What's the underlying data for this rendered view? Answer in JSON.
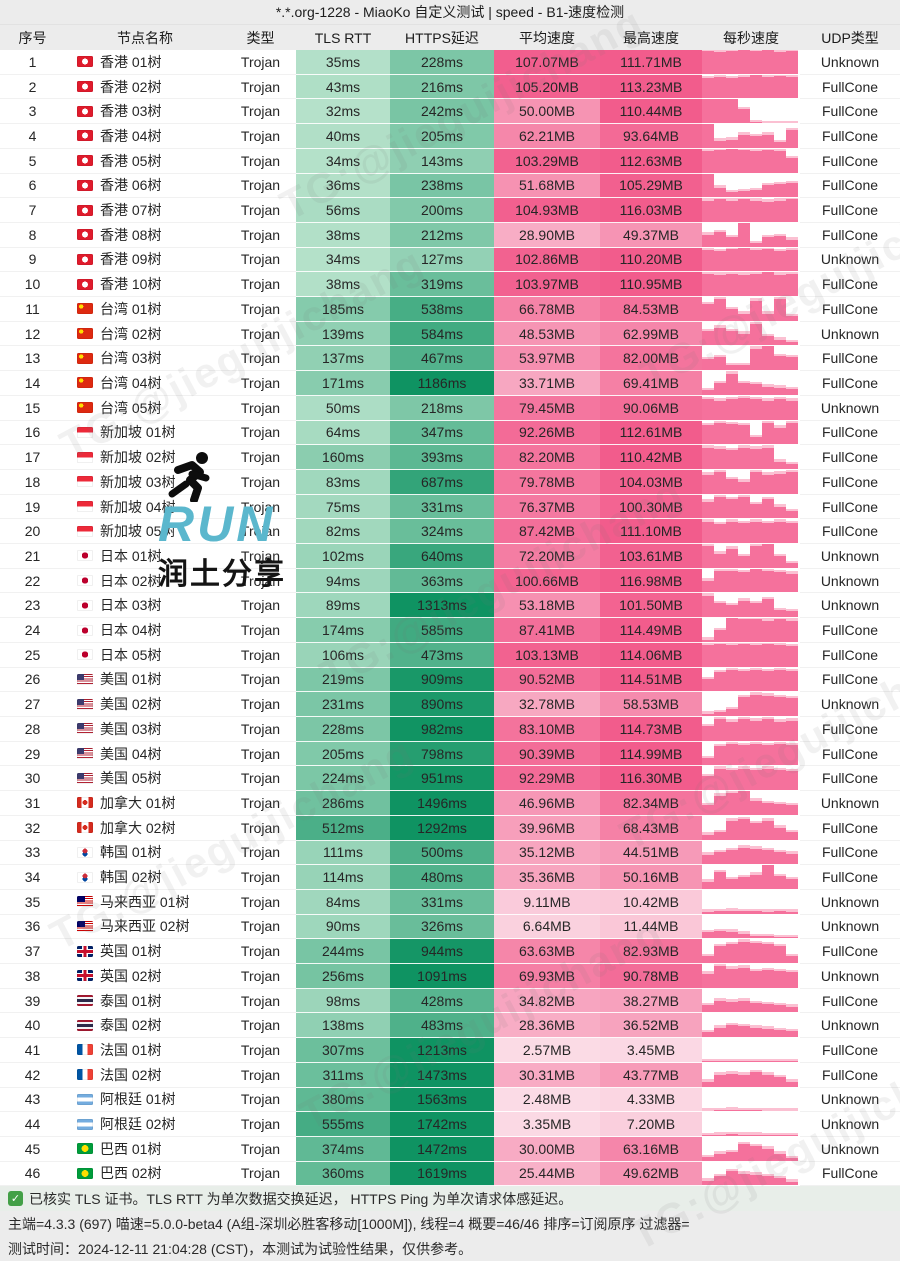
{
  "header": {
    "title": "*.*.org-1228 - MiaoKo 自定义测试 | speed - B1-速度检测"
  },
  "columns": [
    "序号",
    "节点名称",
    "类型",
    "TLS RTT",
    "HTTPS延迟",
    "平均速度",
    "最高速度",
    "每秒速度",
    "UDP类型"
  ],
  "colors": {
    "green_light": "#d2efdc",
    "green_dark": "#0f9362",
    "pink_pale": "#fce7ee",
    "pink_strong": "#f25c8c",
    "bar_pink": "#f5719c",
    "bar_pink_light": "#fbc0d2",
    "header_bg": "#ececec",
    "check_green": "#43a047",
    "run_teal": "#5bb7cd"
  },
  "watermark": {
    "tg": "TG:@jieguijichang",
    "run": "RUN",
    "share": "润土分享",
    "runner_icon": "running-person-icon"
  },
  "footer": {
    "line1": "已核实 TLS 证书。TLS RTT 为单次数据交换延迟， HTTPS Ping 为单次请求体感延迟。",
    "line2": "主端=4.3.3 (697) 喵速=5.0.0-beta4 (A组-深圳必胜客移动[1000M]), 线程=4 概要=46/46 排序=订阅原序 过滤器=",
    "line3": "测试时间：2024-12-11 21:04:28 (CST)，本测试为试验性结果，仅供参考。"
  },
  "rows": [
    {
      "no": "1",
      "flag": "hk",
      "name": "香港 01树",
      "type": "Trojan",
      "tls": "35ms",
      "https": "228ms",
      "avg": "107.07MB",
      "max": "111.71MB",
      "udp": "Unknown",
      "bars": [
        0.95,
        0.9,
        0.97,
        1,
        0.95,
        1,
        0.9,
        0.95
      ]
    },
    {
      "no": "2",
      "flag": "hk",
      "name": "香港 02树",
      "type": "Trojan",
      "tls": "43ms",
      "https": "216ms",
      "avg": "105.20MB",
      "max": "113.23MB",
      "udp": "FullCone",
      "bars": [
        0.85,
        0.92,
        0.85,
        0.9,
        0.97,
        0.9,
        0.95,
        0.9
      ]
    },
    {
      "no": "3",
      "flag": "hk",
      "name": "香港 03树",
      "type": "Trojan",
      "tls": "32ms",
      "https": "242ms",
      "avg": "50.00MB",
      "max": "110.44MB",
      "udp": "FullCone",
      "bars": [
        1,
        1,
        1,
        0.6,
        0.05,
        0,
        0,
        0
      ]
    },
    {
      "no": "4",
      "flag": "hk",
      "name": "香港 04树",
      "type": "Trojan",
      "tls": "40ms",
      "https": "205ms",
      "avg": "62.21MB",
      "max": "93.64MB",
      "udp": "FullCone",
      "bars": [
        1,
        0.3,
        0.35,
        0.55,
        0.5,
        0.55,
        0.25,
        0.75
      ]
    },
    {
      "no": "5",
      "flag": "hk",
      "name": "香港 05树",
      "type": "Trojan",
      "tls": "34ms",
      "https": "143ms",
      "avg": "103.29MB",
      "max": "112.63MB",
      "udp": "FullCone",
      "bars": [
        0.9,
        0.95,
        1,
        0.95,
        0.9,
        0.95,
        0.9,
        0.6
      ]
    },
    {
      "no": "6",
      "flag": "hk",
      "name": "香港 06树",
      "type": "Trojan",
      "tls": "36ms",
      "https": "238ms",
      "avg": "51.68MB",
      "max": "105.29MB",
      "udp": "FullCone",
      "bars": [
        1,
        0.4,
        0.2,
        0.25,
        0.3,
        0.5,
        0.55,
        0.6
      ]
    },
    {
      "no": "7",
      "flag": "hk",
      "name": "香港 07树",
      "type": "Trojan",
      "tls": "56ms",
      "https": "200ms",
      "avg": "104.93MB",
      "max": "116.03MB",
      "udp": "FullCone",
      "bars": [
        0.9,
        0.95,
        0.9,
        0.95,
        0.9,
        0.85,
        0.9,
        0.95
      ]
    },
    {
      "no": "8",
      "flag": "hk",
      "name": "香港 08树",
      "type": "Trojan",
      "tls": "38ms",
      "https": "212ms",
      "avg": "28.90MB",
      "max": "49.37MB",
      "udp": "FullCone",
      "bars": [
        0.5,
        0.6,
        0.4,
        1,
        0.15,
        0.4,
        0.45,
        0.3
      ]
    },
    {
      "no": "9",
      "flag": "hk",
      "name": "香港 09树",
      "type": "Trojan",
      "tls": "34ms",
      "https": "127ms",
      "avg": "102.86MB",
      "max": "110.20MB",
      "udp": "Unknown",
      "bars": [
        0.9,
        0.85,
        0.95,
        1,
        0.9,
        0.95,
        0.85,
        0.9
      ]
    },
    {
      "no": "10",
      "flag": "hk",
      "name": "香港 10树",
      "type": "Trojan",
      "tls": "38ms",
      "https": "319ms",
      "avg": "103.97MB",
      "max": "110.95MB",
      "udp": "FullCone",
      "bars": [
        0.95,
        0.9,
        0.95,
        0.9,
        0.95,
        1,
        0.9,
        0.95
      ]
    },
    {
      "no": "11",
      "flag": "tw",
      "name": "台湾 01树",
      "type": "Trojan",
      "tls": "185ms",
      "https": "538ms",
      "avg": "66.78MB",
      "max": "84.53MB",
      "udp": "FullCone",
      "bars": [
        0.7,
        0.9,
        0.5,
        0.3,
        0.85,
        0.3,
        0.9,
        0.2
      ]
    },
    {
      "no": "12",
      "flag": "tw",
      "name": "台湾 02树",
      "type": "Trojan",
      "tls": "139ms",
      "https": "584ms",
      "avg": "48.53MB",
      "max": "62.99MB",
      "udp": "Unknown",
      "bars": [
        0.6,
        0.75,
        0.6,
        0.5,
        0.9,
        0.4,
        0.25,
        0.15
      ]
    },
    {
      "no": "13",
      "flag": "tw",
      "name": "台湾 03树",
      "type": "Trojan",
      "tls": "137ms",
      "https": "467ms",
      "avg": "53.97MB",
      "max": "82.00MB",
      "udp": "FullCone",
      "bars": [
        0.45,
        0.55,
        0.2,
        0.2,
        0.9,
        1,
        0.6,
        0.55
      ]
    },
    {
      "no": "14",
      "flag": "tw",
      "name": "台湾 04树",
      "type": "Trojan",
      "tls": "171ms",
      "https": "1186ms",
      "avg": "33.71MB",
      "max": "69.41MB",
      "udp": "FullCone",
      "bars": [
        0.2,
        0.5,
        0.9,
        0.5,
        0.45,
        0.35,
        0.3,
        0.25
      ]
    },
    {
      "no": "15",
      "flag": "tw",
      "name": "台湾 05树",
      "type": "Trojan",
      "tls": "50ms",
      "https": "218ms",
      "avg": "79.45MB",
      "max": "90.06MB",
      "udp": "Unknown",
      "bars": [
        0.85,
        0.8,
        0.85,
        0.9,
        0.85,
        0.8,
        0.85,
        0.8
      ]
    },
    {
      "no": "16",
      "flag": "sg",
      "name": "新加坡 01树",
      "type": "Trojan",
      "tls": "64ms",
      "https": "347ms",
      "avg": "92.26MB",
      "max": "112.61MB",
      "udp": "FullCone",
      "bars": [
        0.8,
        0.9,
        0.85,
        0.8,
        0.3,
        0.9,
        0.7,
        0.9
      ]
    },
    {
      "no": "17",
      "flag": "sg",
      "name": "新加坡 02树",
      "type": "Trojan",
      "tls": "160ms",
      "https": "393ms",
      "avg": "82.20MB",
      "max": "110.42MB",
      "udp": "FullCone",
      "bars": [
        0.9,
        0.85,
        0.8,
        0.9,
        0.85,
        0.9,
        0.3,
        0.2
      ]
    },
    {
      "no": "18",
      "flag": "sg",
      "name": "新加坡 03树",
      "type": "Trojan",
      "tls": "83ms",
      "https": "687ms",
      "avg": "79.78MB",
      "max": "104.03MB",
      "udp": "FullCone",
      "bars": [
        0.8,
        0.9,
        0.6,
        0.5,
        0.9,
        0.8,
        0.85,
        0.9
      ]
    },
    {
      "no": "19",
      "flag": "sg",
      "name": "新加坡 04树",
      "type": "Trojan",
      "tls": "75ms",
      "https": "331ms",
      "avg": "76.37MB",
      "max": "100.30MB",
      "udp": "FullCone",
      "bars": [
        0.7,
        0.9,
        0.8,
        0.9,
        0.6,
        0.8,
        0.5,
        0.3
      ]
    },
    {
      "no": "20",
      "flag": "sg",
      "name": "新加坡 05树",
      "type": "Trojan",
      "tls": "82ms",
      "https": "324ms",
      "avg": "87.42MB",
      "max": "111.10MB",
      "udp": "FullCone",
      "bars": [
        0.9,
        0.8,
        0.9,
        0.85,
        0.9,
        0.85,
        0.9,
        0.85
      ]
    },
    {
      "no": "21",
      "flag": "jp",
      "name": "日本 01树",
      "type": "Trojan",
      "tls": "102ms",
      "https": "640ms",
      "avg": "72.20MB",
      "max": "103.61MB",
      "udp": "Unknown",
      "bars": [
        0.9,
        0.6,
        0.8,
        0.5,
        0.9,
        1,
        0.5,
        0.2
      ]
    },
    {
      "no": "22",
      "flag": "jp",
      "name": "日本 02树",
      "type": "Trojan",
      "tls": "94ms",
      "https": "363ms",
      "avg": "100.66MB",
      "max": "116.98MB",
      "udp": "Unknown",
      "bars": [
        0.5,
        0.9,
        0.9,
        0.85,
        1,
        0.9,
        0.85,
        0.8
      ]
    },
    {
      "no": "23",
      "flag": "jp",
      "name": "日本 03树",
      "type": "Trojan",
      "tls": "89ms",
      "https": "1313ms",
      "avg": "53.18MB",
      "max": "101.50MB",
      "udp": "Unknown",
      "bars": [
        0.9,
        0.6,
        0.5,
        0.7,
        0.6,
        0.75,
        0.3,
        0.25
      ]
    },
    {
      "no": "24",
      "flag": "jp",
      "name": "日本 04树",
      "type": "Trojan",
      "tls": "174ms",
      "https": "585ms",
      "avg": "87.41MB",
      "max": "114.49MB",
      "udp": "FullCone",
      "bars": [
        0.1,
        0.5,
        1,
        0.95,
        0.95,
        0.9,
        0.95,
        0.9
      ]
    },
    {
      "no": "25",
      "flag": "jp",
      "name": "日本 05树",
      "type": "Trojan",
      "tls": "106ms",
      "https": "473ms",
      "avg": "103.13MB",
      "max": "114.06MB",
      "udp": "FullCone",
      "bars": [
        0.9,
        0.95,
        0.9,
        0.95,
        0.9,
        0.95,
        0.9,
        0.85
      ]
    },
    {
      "no": "26",
      "flag": "us",
      "name": "美国 01树",
      "type": "Trojan",
      "tls": "219ms",
      "https": "909ms",
      "avg": "90.52MB",
      "max": "114.51MB",
      "udp": "FullCone",
      "bars": [
        0.5,
        0.8,
        0.9,
        0.85,
        0.9,
        0.85,
        0.9,
        0.85
      ]
    },
    {
      "no": "27",
      "flag": "us",
      "name": "美国 02树",
      "type": "Trojan",
      "tls": "231ms",
      "https": "890ms",
      "avg": "32.78MB",
      "max": "58.53MB",
      "udp": "Unknown",
      "bars": [
        0.1,
        0.15,
        0.3,
        0.8,
        0.9,
        0.85,
        0.8,
        0.75
      ]
    },
    {
      "no": "28",
      "flag": "us",
      "name": "美国 03树",
      "type": "Trojan",
      "tls": "228ms",
      "https": "982ms",
      "avg": "83.10MB",
      "max": "114.73MB",
      "udp": "FullCone",
      "bars": [
        0.6,
        0.9,
        0.8,
        0.9,
        0.85,
        0.9,
        0.8,
        0.85
      ]
    },
    {
      "no": "29",
      "flag": "us",
      "name": "美国 04树",
      "type": "Trojan",
      "tls": "205ms",
      "https": "798ms",
      "avg": "90.39MB",
      "max": "114.99MB",
      "udp": "FullCone",
      "bars": [
        0.3,
        0.8,
        0.9,
        0.85,
        0.9,
        0.85,
        0.9,
        0.85
      ]
    },
    {
      "no": "30",
      "flag": "us",
      "name": "美国 05树",
      "type": "Trojan",
      "tls": "224ms",
      "https": "951ms",
      "avg": "92.29MB",
      "max": "116.30MB",
      "udp": "FullCone",
      "bars": [
        0.6,
        0.9,
        0.85,
        0.9,
        0.85,
        0.9,
        0.85,
        0.8
      ]
    },
    {
      "no": "31",
      "flag": "ca",
      "name": "加拿大 01树",
      "type": "Trojan",
      "tls": "286ms",
      "https": "1496ms",
      "avg": "46.96MB",
      "max": "82.34MB",
      "udp": "Unknown",
      "bars": [
        0.4,
        0.8,
        0.9,
        1,
        0.6,
        0.5,
        0.45,
        0.4
      ]
    },
    {
      "no": "32",
      "flag": "ca",
      "name": "加拿大 02树",
      "type": "Trojan",
      "tls": "512ms",
      "https": "1292ms",
      "avg": "39.96MB",
      "max": "68.43MB",
      "udp": "FullCone",
      "bars": [
        0.2,
        0.3,
        0.8,
        0.85,
        0.7,
        0.8,
        0.5,
        0.3
      ]
    },
    {
      "no": "33",
      "flag": "kr",
      "name": "韩国 01树",
      "type": "Trojan",
      "tls": "111ms",
      "https": "500ms",
      "avg": "35.12MB",
      "max": "44.51MB",
      "udp": "FullCone",
      "bars": [
        0.4,
        0.5,
        0.6,
        0.7,
        0.65,
        0.6,
        0.5,
        0.45
      ]
    },
    {
      "no": "34",
      "flag": "kr",
      "name": "韩国 02树",
      "type": "Trojan",
      "tls": "114ms",
      "https": "480ms",
      "avg": "35.36MB",
      "max": "50.16MB",
      "udp": "FullCone",
      "bars": [
        0.3,
        0.7,
        0.4,
        0.5,
        0.6,
        1,
        0.55,
        0.4
      ]
    },
    {
      "no": "35",
      "flag": "my",
      "name": "马来西亚 01树",
      "type": "Trojan",
      "tls": "84ms",
      "https": "331ms",
      "avg": "9.11MB",
      "max": "10.42MB",
      "udp": "Unknown",
      "bars": [
        0.08,
        0.1,
        0.12,
        0.1,
        0.1,
        0.08,
        0.1,
        0.08
      ]
    },
    {
      "no": "36",
      "flag": "my",
      "name": "马来西亚 02树",
      "type": "Trojan",
      "tls": "90ms",
      "https": "326ms",
      "avg": "6.64MB",
      "max": "11.44MB",
      "udp": "Unknown",
      "bars": [
        0.25,
        0.3,
        0.28,
        0.2,
        0.1,
        0.08,
        0.05,
        0.05
      ]
    },
    {
      "no": "37",
      "flag": "gb",
      "name": "英国 01树",
      "type": "Trojan",
      "tls": "244ms",
      "https": "944ms",
      "avg": "63.63MB",
      "max": "82.93MB",
      "udp": "FullCone",
      "bars": [
        0.3,
        0.7,
        0.8,
        0.9,
        0.85,
        0.8,
        0.7,
        0.3
      ]
    },
    {
      "no": "38",
      "flag": "gb",
      "name": "英国 02树",
      "type": "Trojan",
      "tls": "256ms",
      "https": "1091ms",
      "avg": "69.93MB",
      "max": "90.78MB",
      "udp": "Unknown",
      "bars": [
        0.6,
        0.9,
        0.8,
        0.85,
        0.7,
        0.75,
        0.7,
        0.65
      ]
    },
    {
      "no": "39",
      "flag": "th",
      "name": "泰国 01树",
      "type": "Trojan",
      "tls": "98ms",
      "https": "428ms",
      "avg": "34.82MB",
      "max": "38.27MB",
      "udp": "FullCone",
      "bars": [
        0.3,
        0.5,
        0.45,
        0.5,
        0.4,
        0.35,
        0.3,
        0.25
      ]
    },
    {
      "no": "40",
      "flag": "th",
      "name": "泰国 02树",
      "type": "Trojan",
      "tls": "138ms",
      "https": "483ms",
      "avg": "28.36MB",
      "max": "36.52MB",
      "udp": "Unknown",
      "bars": [
        0.2,
        0.4,
        0.5,
        0.45,
        0.4,
        0.35,
        0.3,
        0.25
      ]
    },
    {
      "no": "41",
      "flag": "fr",
      "name": "法国 01树",
      "type": "Trojan",
      "tls": "307ms",
      "https": "1213ms",
      "avg": "2.57MB",
      "max": "3.45MB",
      "udp": "FullCone",
      "bars": [
        0.02,
        0.03,
        0.03,
        0.02,
        0.02,
        0.02,
        0.02,
        0.02
      ]
    },
    {
      "no": "42",
      "flag": "fr",
      "name": "法国 02树",
      "type": "Trojan",
      "tls": "311ms",
      "https": "1473ms",
      "avg": "30.31MB",
      "max": "43.77MB",
      "udp": "FullCone",
      "bars": [
        0.2,
        0.5,
        0.55,
        0.5,
        0.6,
        0.5,
        0.4,
        0.2
      ]
    },
    {
      "no": "43",
      "flag": "ar",
      "name": "阿根廷 01树",
      "type": "Trojan",
      "tls": "380ms",
      "https": "1563ms",
      "avg": "2.48MB",
      "max": "4.33MB",
      "udp": "Unknown",
      "bars": [
        0.03,
        0.05,
        0.06,
        0.05,
        0.04,
        0.03,
        0.03,
        0.02
      ]
    },
    {
      "no": "44",
      "flag": "ar",
      "name": "阿根廷 02树",
      "type": "Trojan",
      "tls": "555ms",
      "https": "1742ms",
      "avg": "3.35MB",
      "max": "7.20MB",
      "udp": "Unknown",
      "bars": [
        0.04,
        0.06,
        0.08,
        0.06,
        0.05,
        0.04,
        0.04,
        0.03
      ]
    },
    {
      "no": "45",
      "flag": "br",
      "name": "巴西 01树",
      "type": "Trojan",
      "tls": "374ms",
      "https": "1472ms",
      "avg": "30.00MB",
      "max": "63.16MB",
      "udp": "Unknown",
      "bars": [
        0.15,
        0.3,
        0.35,
        0.7,
        0.6,
        0.5,
        0.3,
        0.1
      ]
    },
    {
      "no": "46",
      "flag": "br",
      "name": "巴西 02树",
      "type": "Trojan",
      "tls": "360ms",
      "https": "1619ms",
      "avg": "25.44MB",
      "max": "49.62MB",
      "udp": "FullCone",
      "bars": [
        0.2,
        0.4,
        0.6,
        0.5,
        0.45,
        0.4,
        0.3,
        0.15
      ]
    }
  ]
}
